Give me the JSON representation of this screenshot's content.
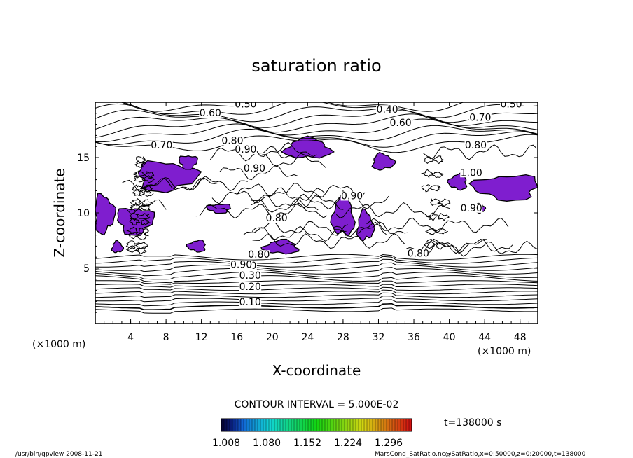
{
  "chart_data": {
    "type": "contour",
    "title": "saturation ratio",
    "xlabel": "X-coordinate",
    "ylabel": "Z-coordinate",
    "x_unit": "(×1000 m)",
    "y_unit": "(×1000 m)",
    "xlim": [
      0,
      50
    ],
    "ylim": [
      0,
      20
    ],
    "xticks": [
      4,
      8,
      12,
      16,
      20,
      24,
      28,
      32,
      36,
      40,
      44,
      48
    ],
    "yticks": [
      5,
      10,
      15
    ],
    "contour_interval_text": "CONTOUR INTERVAL = 5.000E-02",
    "time_text": "t=138000 s",
    "colorbar_ticks": [
      "1.008",
      "1.080",
      "1.152",
      "1.224",
      "1.296"
    ],
    "contour_labels": [
      {
        "text": "0.10",
        "x": 17.5,
        "z": 1.7
      },
      {
        "text": "0.20",
        "x": 17.5,
        "z": 3.1
      },
      {
        "text": "0.30",
        "x": 17.5,
        "z": 4.1
      },
      {
        "text": "0.40",
        "x": 17.0,
        "z": 5.0
      },
      {
        "text": "0.50",
        "x": 17.0,
        "z": 19.6
      },
      {
        "text": "0.50",
        "x": 47.0,
        "z": 19.6
      },
      {
        "text": "0.40",
        "x": 33.0,
        "z": 19.1
      },
      {
        "text": "0.60",
        "x": 13.0,
        "z": 18.8
      },
      {
        "text": "0.60",
        "x": 34.5,
        "z": 17.9
      },
      {
        "text": "0.70",
        "x": 43.5,
        "z": 18.4
      },
      {
        "text": "0.70",
        "x": 7.5,
        "z": 15.9
      },
      {
        "text": "0.80",
        "x": 15.5,
        "z": 16.3
      },
      {
        "text": "0.80",
        "x": 43.0,
        "z": 15.9
      },
      {
        "text": "0.90",
        "x": 17.0,
        "z": 15.5
      },
      {
        "text": "0.90",
        "x": 18.0,
        "z": 13.8
      },
      {
        "text": "1.00",
        "x": 42.5,
        "z": 13.4
      },
      {
        "text": "0.90",
        "x": 42.5,
        "z": 10.2
      },
      {
        "text": "0.80",
        "x": 20.5,
        "z": 9.3
      },
      {
        "text": "0.90",
        "x": 29.0,
        "z": 11.3
      },
      {
        "text": "0.90",
        "x": 16.5,
        "z": 5.1
      },
      {
        "text": "0.80",
        "x": 18.5,
        "z": 6.0
      },
      {
        "text": "0.80",
        "x": 36.5,
        "z": 6.1
      }
    ],
    "supersaturated_regions": [
      {
        "x": 24.0,
        "z": 15.8,
        "rx": 2.5,
        "rz": 0.9
      },
      {
        "x": 32.5,
        "z": 14.6,
        "rx": 1.2,
        "rz": 0.7
      },
      {
        "x": 8.0,
        "z": 13.3,
        "rx": 3.3,
        "rz": 1.3
      },
      {
        "x": 10.5,
        "z": 14.6,
        "rx": 1.0,
        "rz": 0.6
      },
      {
        "x": 46.5,
        "z": 12.3,
        "rx": 3.6,
        "rz": 1.1
      },
      {
        "x": 41.0,
        "z": 12.8,
        "rx": 1.0,
        "rz": 0.7
      },
      {
        "x": 28.0,
        "z": 9.7,
        "rx": 1.2,
        "rz": 1.8
      },
      {
        "x": 30.5,
        "z": 8.8,
        "rx": 0.9,
        "rz": 1.3
      },
      {
        "x": 1.0,
        "z": 9.9,
        "rx": 1.1,
        "rz": 1.7
      },
      {
        "x": 4.5,
        "z": 9.3,
        "rx": 2.0,
        "rz": 1.2
      },
      {
        "x": 14.0,
        "z": 10.4,
        "rx": 1.3,
        "rz": 0.4
      },
      {
        "x": 11.5,
        "z": 7.0,
        "rx": 1.0,
        "rz": 0.5
      },
      {
        "x": 21.0,
        "z": 6.9,
        "rx": 1.9,
        "rz": 0.6
      },
      {
        "x": 2.5,
        "z": 6.9,
        "rx": 0.6,
        "rz": 0.5
      },
      {
        "x": 43.5,
        "z": 10.4,
        "rx": 0.5,
        "rz": 0.4
      }
    ]
  },
  "footer": {
    "left": "/usr/bin/gpview  2008-11-21",
    "right": "MarsCond_SatRatio.nc@SatRatio,x=0:50000,z=0:20000,t=138000"
  },
  "colors": {
    "fill": "#7f1ecf",
    "lines": "#000000"
  }
}
